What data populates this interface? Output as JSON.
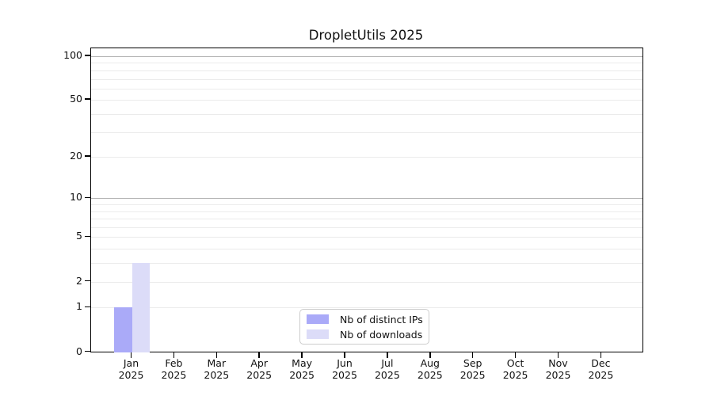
{
  "title": "DropletUtils 2025",
  "colors": {
    "distinct_ips_bar": "#aaaaf8",
    "downloads_bar": "#dcdcf8",
    "grid_major": "#b4b4b4",
    "grid_minor": "#ebebeb",
    "axis": "#000000"
  },
  "legend": {
    "items": [
      {
        "label": "Nb of distinct IPs",
        "series": "distinct_ips"
      },
      {
        "label": "Nb of downloads",
        "series": "downloads"
      }
    ]
  },
  "chart_data": {
    "type": "bar",
    "title": "DropletUtils 2025",
    "categories": [
      "Jan",
      "Feb",
      "Mar",
      "Apr",
      "May",
      "Jun",
      "Jul",
      "Aug",
      "Sep",
      "Oct",
      "Nov",
      "Dec"
    ],
    "x_sublabel": "2025",
    "series": [
      {
        "name": "Nb of distinct IPs",
        "color": "#aaaaf8",
        "values": [
          1,
          0,
          0,
          0,
          0,
          0,
          0,
          0,
          0,
          0,
          0,
          0
        ]
      },
      {
        "name": "Nb of downloads",
        "color": "#dcdcf8",
        "values": [
          3,
          0,
          0,
          0,
          0,
          0,
          0,
          0,
          0,
          0,
          0,
          0
        ]
      }
    ],
    "yscale": "log1p",
    "ylim": [
      0,
      113
    ],
    "y_ticks": [
      0,
      1,
      2,
      5,
      10,
      20,
      50,
      100
    ],
    "y_grid_major": [
      10,
      100
    ],
    "y_grid_minor": [
      1,
      2,
      3,
      4,
      5,
      6,
      7,
      8,
      9,
      20,
      30,
      40,
      50,
      60,
      70,
      80,
      90
    ],
    "grid": true,
    "legend_position": "lower center"
  }
}
